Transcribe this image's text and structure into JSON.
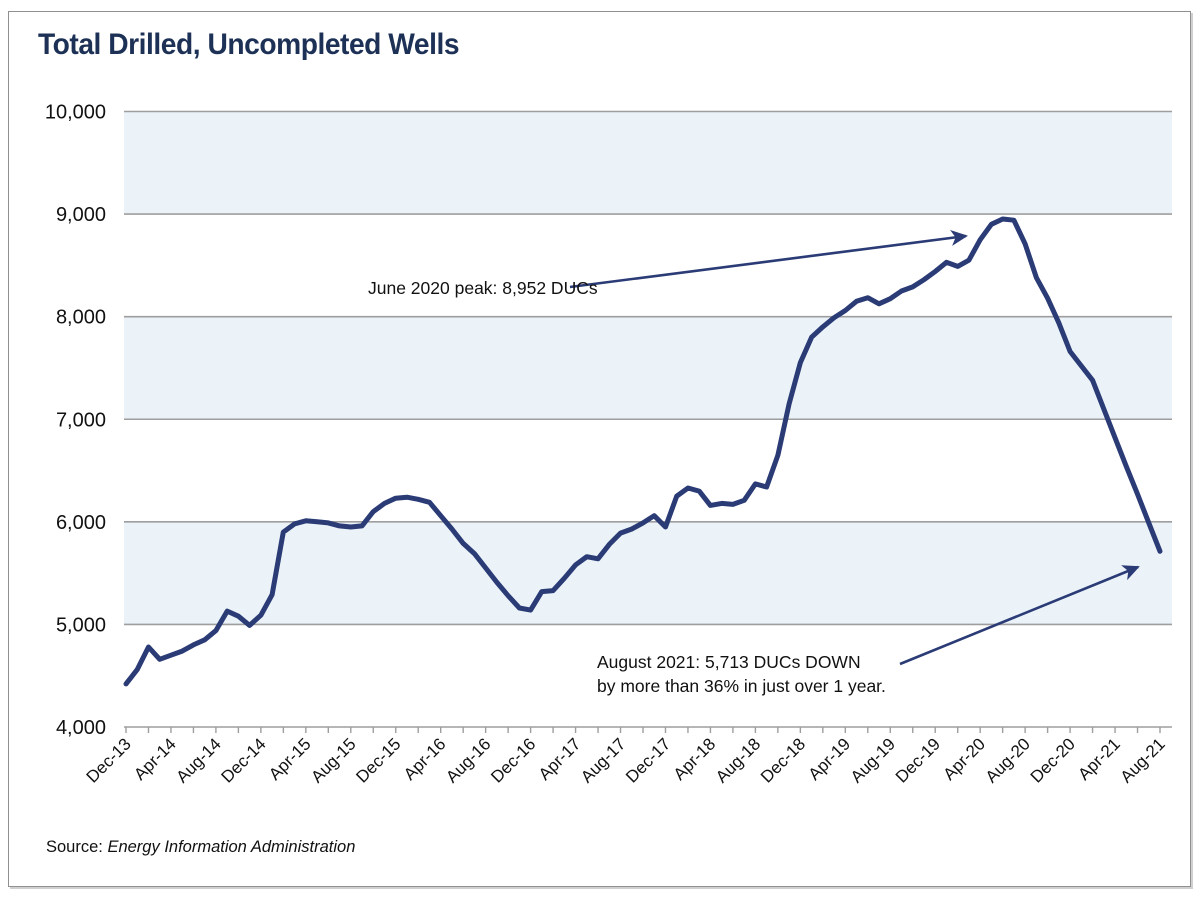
{
  "page": {
    "title": "Total Drilled, Uncompleted Wells"
  },
  "annotations": {
    "peak": "June 2020 peak: 8,952 DUCs",
    "end_line1": "August 2021: 5,713 DUCs DOWN",
    "end_line2": "by more than 36% in just over 1 year."
  },
  "source": {
    "prefix": "Source: ",
    "name": "Energy Information Administration"
  },
  "chart_data": {
    "type": "line",
    "title": "Total Drilled, Uncompleted Wells",
    "series_name": "Total drilled, uncompleted wells (DUCs)",
    "x_start": "Dec-13",
    "x_end": "Aug-21",
    "x_frequency": "monthly",
    "x_tick_labels": [
      "Dec-13",
      "Apr-14",
      "Aug-14",
      "Dec-14",
      "Apr-15",
      "Aug-15",
      "Dec-15",
      "Apr-16",
      "Aug-16",
      "Dec-16",
      "Apr-17",
      "Aug-17",
      "Dec-17",
      "Apr-18",
      "Aug-18",
      "Dec-18",
      "Apr-19",
      "Aug-19",
      "Dec-19",
      "Apr-20",
      "Aug-20",
      "Dec-20",
      "Apr-21",
      "Aug-21"
    ],
    "x_label_step_months": 4,
    "minor_tick_step_months": 2,
    "values": [
      4420,
      4560,
      4780,
      4660,
      4700,
      4740,
      4800,
      4850,
      4940,
      5130,
      5080,
      4990,
      5090,
      5290,
      5900,
      5980,
      6010,
      6000,
      5990,
      5960,
      5950,
      5960,
      6100,
      6180,
      6230,
      6240,
      6220,
      6190,
      6060,
      5930,
      5790,
      5690,
      5550,
      5410,
      5280,
      5160,
      5140,
      5320,
      5330,
      5450,
      5580,
      5660,
      5640,
      5780,
      5890,
      5930,
      5990,
      6060,
      5950,
      6250,
      6330,
      6300,
      6160,
      6180,
      6170,
      6210,
      6370,
      6340,
      6650,
      7150,
      7550,
      7800,
      7900,
      7990,
      8060,
      8150,
      8185,
      8125,
      8175,
      8250,
      8290,
      8360,
      8440,
      8530,
      8490,
      8550,
      8750,
      8900,
      8952,
      8940,
      8710,
      8380,
      8180,
      7940,
      7660,
      7520,
      7380,
      7100,
      6820,
      6540,
      6270,
      5990,
      5713
    ],
    "highlighted_points": [
      {
        "x": "Jun-20",
        "value": 8952,
        "note": "June 2020 peak: 8,952 DUCs"
      },
      {
        "x": "Aug-21",
        "value": 5713,
        "note": "August 2021: 5,713 DUCs DOWN by more than 36% in just over 1 year."
      }
    ],
    "ylim": [
      4000,
      10000
    ],
    "y_tick_values": [
      4000,
      5000,
      6000,
      7000,
      8000,
      9000,
      10000
    ],
    "y_tick_labels": [
      "4,000",
      "5,000",
      "6,000",
      "7,000",
      "8,000",
      "9,000",
      "10,000"
    ],
    "shaded_bands": [
      [
        5000,
        6000
      ],
      [
        7000,
        8000
      ],
      [
        9000,
        10000
      ]
    ],
    "grid": "horizontal",
    "legend": "none",
    "colors": {
      "line": "#2a3b76",
      "band": "#ebf3f9",
      "grid": "#9e9e9e",
      "title": "#1d3156",
      "text": "#111111",
      "arrow": "#2a3b76"
    }
  }
}
